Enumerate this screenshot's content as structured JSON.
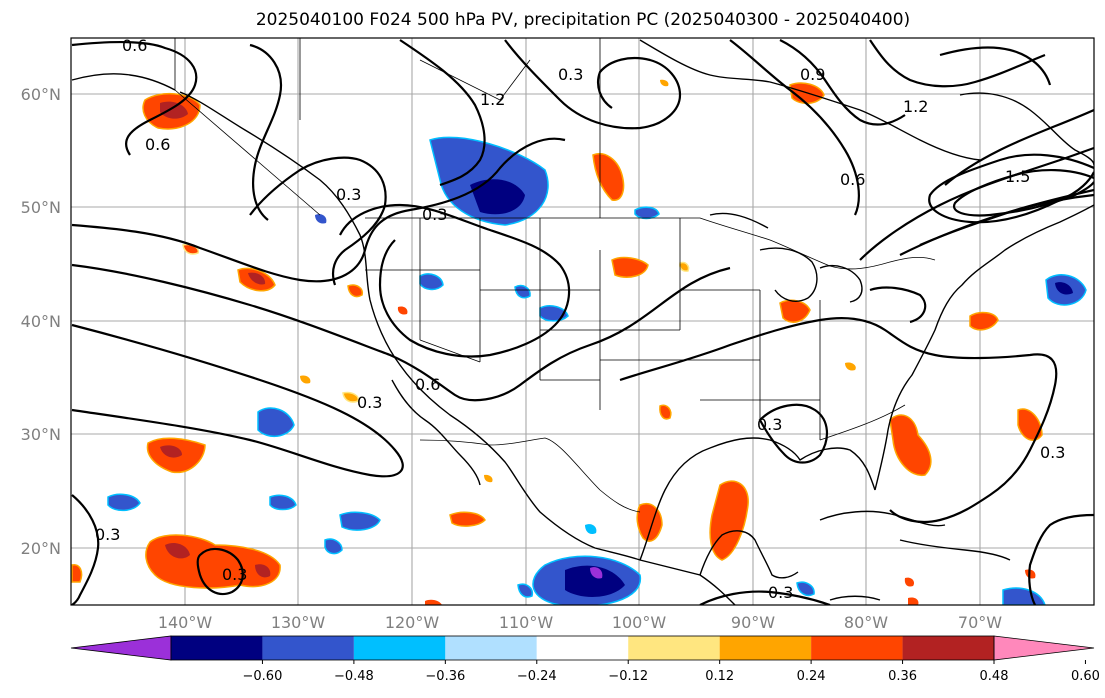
{
  "title": "2025040100 F024 500 hPa PV, precipitation PC (2025040300 - 2025040400)",
  "lat_labels": [
    "60°N",
    "50°N",
    "40°N",
    "30°N",
    "20°N"
  ],
  "lon_labels": [
    "140°W",
    "130°W",
    "120°W",
    "110°W",
    "100°W",
    "90°W",
    "80°W",
    "70°W"
  ],
  "contour_labels": [
    "0.6",
    "0.6",
    "0.3",
    "1.2",
    "0.9",
    "1.2",
    "1.5",
    "0.3",
    "0.3",
    "0.6",
    "0.3",
    "0.6",
    "0.3",
    "0.3",
    "0.3",
    "0.3",
    "0.3"
  ],
  "colorbar": {
    "tick_labels": [
      "−0.60",
      "−0.48",
      "−0.36",
      "−0.24",
      "−0.12",
      "0.12",
      "0.24",
      "0.36",
      "0.48",
      "0.60"
    ],
    "colors": [
      "#9b30d9",
      "#000080",
      "#3355cc",
      "#00bfff",
      "#b0e0ff",
      "#ffffff",
      "#ffe680",
      "#ffa500",
      "#ff4500",
      "#b22222",
      "#ff88bb"
    ]
  }
}
